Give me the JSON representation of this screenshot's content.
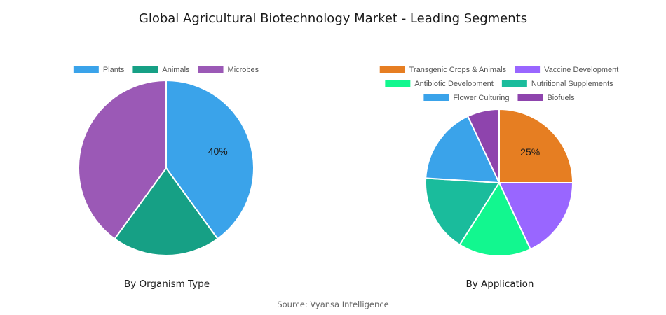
{
  "title": "Global Agricultural Biotechnology Market - Leading Segments",
  "source": "Source: Vyansa Intelligence",
  "chart_data": [
    {
      "type": "pie",
      "subtitle": "By Organism Type",
      "categories": [
        "Plants",
        "Animals",
        "Microbes"
      ],
      "values": [
        40,
        20,
        40
      ],
      "colors": [
        "#3aa3ea",
        "#16a085",
        "#9b59b6"
      ],
      "labels": [
        "40%",
        "",
        ""
      ],
      "legend_position": "top"
    },
    {
      "type": "pie",
      "subtitle": "By Application",
      "categories": [
        "Transgenic Crops & Animals",
        "Vaccine Development",
        "Antibiotic Development",
        "Nutritional Supplements",
        "Flower Culturing",
        "Biofuels"
      ],
      "values": [
        25,
        18,
        16,
        17,
        17,
        7
      ],
      "colors": [
        "#e67e22",
        "#9966ff",
        "#12f78f",
        "#1abc9c",
        "#3aa3ea",
        "#8e44ad"
      ],
      "labels": [
        "25%",
        "",
        "",
        "",
        "",
        ""
      ],
      "legend_position": "top"
    }
  ]
}
